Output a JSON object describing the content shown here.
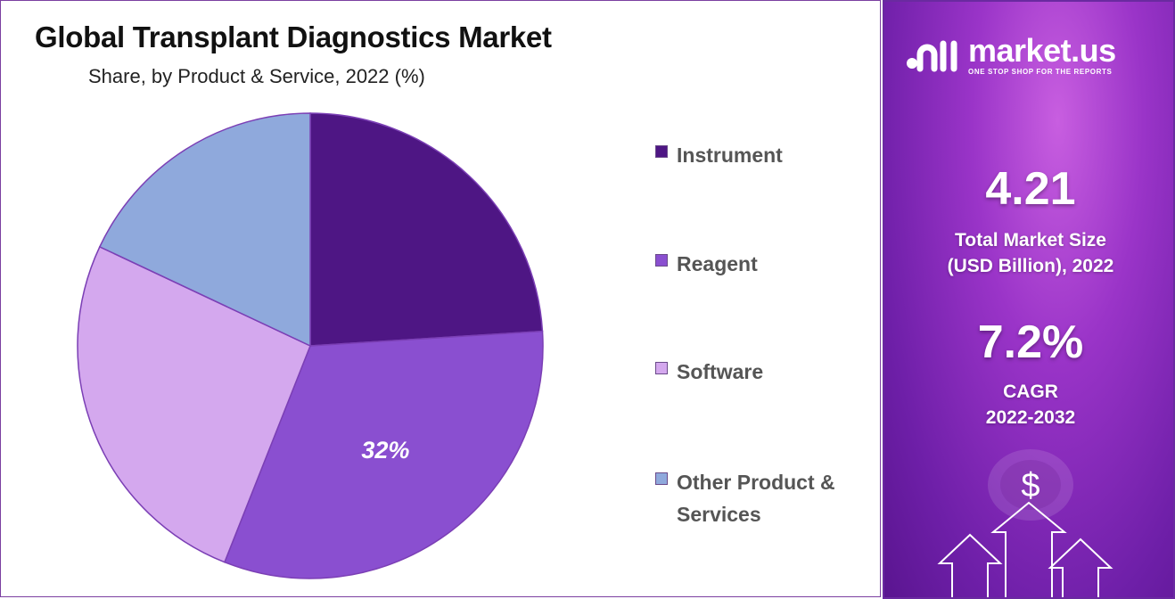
{
  "header": {
    "title": "Global Transplant Diagnostics Market",
    "subtitle": "Share, by Product & Service, 2022 (%)"
  },
  "chart_data": {
    "type": "pie",
    "categories": [
      "Instrument",
      "Reagent",
      "Software",
      "Other Product & Services"
    ],
    "values": [
      24,
      32,
      26,
      18
    ],
    "colors": [
      "#4e1684",
      "#8a4fd0",
      "#d4a8ee",
      "#8fa9dc"
    ],
    "data_labels": [
      "",
      "32%",
      "",
      ""
    ],
    "legend_position": "right"
  },
  "legend": {
    "items": [
      {
        "label_line1": "Instrument",
        "label_line2": "",
        "color": "#4e1684"
      },
      {
        "label_line1": "Reagent",
        "label_line2": "",
        "color": "#8a4fd0"
      },
      {
        "label_line1": "Software",
        "label_line2": "",
        "color": "#d4a8ee"
      },
      {
        "label_line1": "Other Product &",
        "label_line2": "Services",
        "color": "#8fa9dc"
      }
    ]
  },
  "side_panel": {
    "brand_name": "market.us",
    "brand_tagline": "ONE STOP SHOP FOR THE REPORTS",
    "market_size_value": "4.21",
    "market_size_label_line1": "Total Market Size",
    "market_size_label_line2": "(USD Billion), 2022",
    "cagr_value": "7.2%",
    "cagr_label_line1": "CAGR",
    "cagr_label_line2": "2022-2032",
    "dollar_symbol": "$"
  }
}
